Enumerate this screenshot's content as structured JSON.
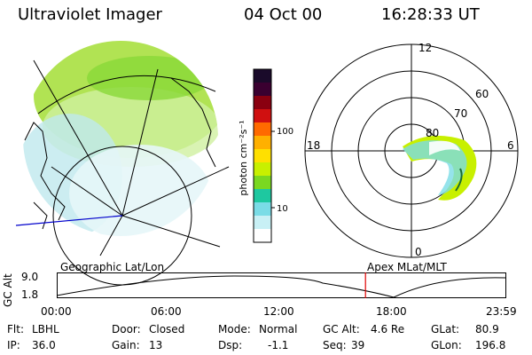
{
  "header": {
    "title": "Ultraviolet Imager",
    "date": "04 Oct 00",
    "time": "16:28:33 UT"
  },
  "colorbar": {
    "unit_label": "photon cm⁻²s⁻¹",
    "ticks": [
      "100",
      "10"
    ],
    "colors": [
      "#1a0a2a",
      "#3a0030",
      "#8a0010",
      "#d01010",
      "#ff6a00",
      "#ffb000",
      "#ffe000",
      "#c8f000",
      "#7ad820",
      "#1ec8a0",
      "#7adce6",
      "#c8f0f5",
      "#ffffff"
    ]
  },
  "polar_plot": {
    "mlt_labels": {
      "top": "12",
      "left": "18",
      "right": "6",
      "bottom": "0"
    },
    "lat_labels": [
      "60",
      "70",
      "80"
    ]
  },
  "map_labels": {
    "left": "Geographic Lat/Lon",
    "right": "Apex MLat/MLT"
  },
  "timeline": {
    "y_axis_label": "GC Alt",
    "y_ticks": [
      "9.0",
      "1.8"
    ],
    "x_ticks": [
      "00:00",
      "06:00",
      "12:00",
      "18:00",
      "23:59"
    ],
    "current_marker_hours": 16.47
  },
  "info": {
    "flt_label": "Flt:",
    "flt_value": "LBHL",
    "ip_label": "IP:",
    "ip_value": "36.0",
    "door_label": "Door:",
    "door_value": "Closed",
    "gain_label": "Gain:",
    "gain_value": "13",
    "mode_label": "Mode:",
    "mode_value": "Normal",
    "dsp_label": "Dsp:",
    "dsp_value": "-1.1",
    "gcalt_label": "GC Alt:",
    "gcalt_value": "4.6 Re",
    "seq_label": "Seq:",
    "seq_value": "39",
    "glat_label": "GLat:",
    "glat_value": "80.9",
    "glon_label": "GLon:",
    "glon_value": "196.8"
  }
}
